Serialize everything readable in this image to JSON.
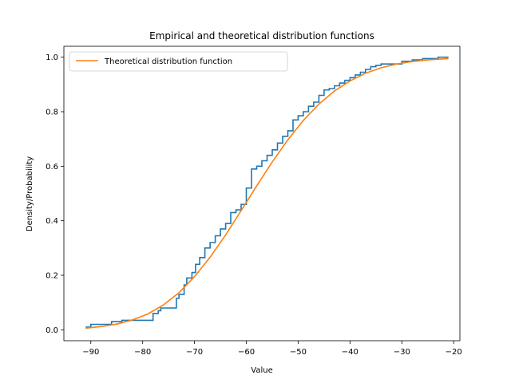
{
  "chart_data": {
    "type": "line",
    "title": "Empirical and theoretical distribution functions",
    "xlabel": "Value",
    "ylabel": "Density/Probability",
    "xlim": [
      -95.2,
      -18.8
    ],
    "ylim": [
      -0.04,
      1.04
    ],
    "xticks": [
      -90,
      -80,
      -70,
      -60,
      -50,
      -40,
      -30,
      -20
    ],
    "xtick_labels": [
      "−90",
      "−80",
      "−70",
      "−60",
      "−50",
      "−40",
      "−30",
      "−20"
    ],
    "yticks": [
      0.0,
      0.2,
      0.4,
      0.6,
      0.8,
      1.0
    ],
    "ytick_labels": [
      "0.0",
      "0.2",
      "0.4",
      "0.6",
      "0.8",
      "1.0"
    ],
    "grid": false,
    "legend": {
      "placement": "top-left",
      "entries": [
        "Theoretical distribution function"
      ]
    },
    "series": [
      {
        "name": "",
        "kind": "step",
        "color": "#1f77b4",
        "x": [
          -91.0,
          -90.0,
          -87.5,
          -86.0,
          -84.0,
          -79.0,
          -78.0,
          -77.0,
          -76.5,
          -74.0,
          -73.5,
          -73.0,
          -72.0,
          -71.5,
          -70.5,
          -69.8,
          -69.0,
          -68.0,
          -67.0,
          -66.0,
          -65.0,
          -64.0,
          -63.0,
          -62.0,
          -61.0,
          -60.0,
          -59.0,
          -58.0,
          -57.0,
          -56.0,
          -55.0,
          -54.0,
          -53.0,
          -52.0,
          -51.0,
          -50.0,
          -49.0,
          -48.0,
          -47.0,
          -46.0,
          -45.0,
          -44.0,
          -43.0,
          -42.0,
          -41.0,
          -40.0,
          -39.0,
          -38.0,
          -37.0,
          -36.0,
          -35.0,
          -34.0,
          -32.0,
          -30.0,
          -28.0,
          -26.0,
          -23.0,
          -21.0
        ],
        "y": [
          0.01,
          0.02,
          0.02,
          0.03,
          0.035,
          0.035,
          0.06,
          0.07,
          0.08,
          0.08,
          0.115,
          0.13,
          0.165,
          0.19,
          0.21,
          0.24,
          0.265,
          0.3,
          0.32,
          0.345,
          0.37,
          0.39,
          0.43,
          0.44,
          0.46,
          0.52,
          0.59,
          0.6,
          0.62,
          0.64,
          0.66,
          0.685,
          0.71,
          0.73,
          0.77,
          0.785,
          0.8,
          0.82,
          0.835,
          0.86,
          0.88,
          0.885,
          0.895,
          0.905,
          0.915,
          0.925,
          0.935,
          0.945,
          0.955,
          0.965,
          0.97,
          0.975,
          0.975,
          0.985,
          0.99,
          0.995,
          1.0,
          1.0
        ]
      },
      {
        "name": "Theoretical distribution function",
        "kind": "line",
        "color": "#ff7f0e",
        "x": [
          -91,
          -88,
          -85,
          -82,
          -79,
          -76,
          -73,
          -70,
          -67,
          -64,
          -61,
          -58,
          -55,
          -52,
          -49,
          -46,
          -43,
          -40,
          -37,
          -34,
          -31,
          -28,
          -25,
          -21
        ],
        "y": [
          0.006,
          0.012,
          0.021,
          0.036,
          0.058,
          0.091,
          0.136,
          0.195,
          0.266,
          0.348,
          0.437,
          0.528,
          0.616,
          0.697,
          0.768,
          0.828,
          0.876,
          0.913,
          0.941,
          0.961,
          0.975,
          0.984,
          0.99,
          0.995
        ]
      }
    ]
  }
}
